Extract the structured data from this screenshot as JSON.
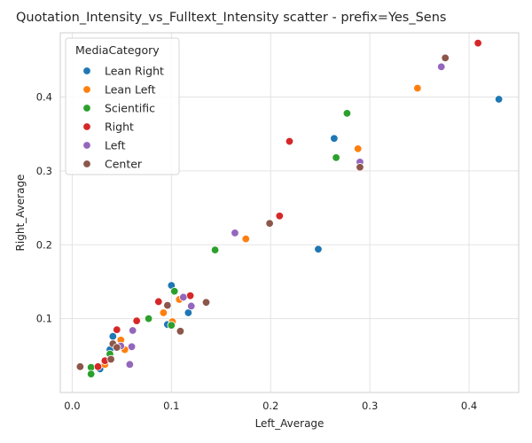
{
  "chart_data": {
    "type": "scatter",
    "title": "Quotation_Intensity_vs_Fulltext_Intensity scatter - prefix=Yes_Sens",
    "xlabel": "Left_Average",
    "ylabel": "Right_Average",
    "xlim": [
      -0.012,
      0.45
    ],
    "ylim": [
      0.0,
      0.487
    ],
    "xticks": [
      0.0,
      0.1,
      0.2,
      0.3,
      0.4
    ],
    "xtick_labels": [
      "0.0",
      "0.1",
      "0.2",
      "0.3",
      "0.4"
    ],
    "yticks": [
      0.1,
      0.2,
      0.3,
      0.4
    ],
    "ytick_labels": [
      "0.1",
      "0.2",
      "0.3",
      "0.4"
    ],
    "grid": true,
    "legend": {
      "title": "MediaCategory",
      "placement": "top-left"
    },
    "series": [
      {
        "name": "Lean Right",
        "color": "#1f77b4",
        "points": [
          {
            "x": 0.43,
            "y": 0.397
          },
          {
            "x": 0.264,
            "y": 0.344
          },
          {
            "x": 0.248,
            "y": 0.194
          },
          {
            "x": 0.1,
            "y": 0.145
          },
          {
            "x": 0.117,
            "y": 0.108
          },
          {
            "x": 0.096,
            "y": 0.092
          },
          {
            "x": 0.041,
            "y": 0.076
          },
          {
            "x": 0.038,
            "y": 0.058
          },
          {
            "x": 0.028,
            "y": 0.032
          }
        ]
      },
      {
        "name": "Lean Left",
        "color": "#ff7f0e",
        "points": [
          {
            "x": 0.348,
            "y": 0.412
          },
          {
            "x": 0.288,
            "y": 0.33
          },
          {
            "x": 0.175,
            "y": 0.208
          },
          {
            "x": 0.108,
            "y": 0.126
          },
          {
            "x": 0.092,
            "y": 0.108
          },
          {
            "x": 0.101,
            "y": 0.096
          },
          {
            "x": 0.049,
            "y": 0.071
          },
          {
            "x": 0.053,
            "y": 0.058
          },
          {
            "x": 0.033,
            "y": 0.038
          }
        ]
      },
      {
        "name": "Scientific",
        "color": "#2ca02c",
        "points": [
          {
            "x": 0.277,
            "y": 0.378
          },
          {
            "x": 0.266,
            "y": 0.318
          },
          {
            "x": 0.144,
            "y": 0.193
          },
          {
            "x": 0.103,
            "y": 0.137
          },
          {
            "x": 0.077,
            "y": 0.1
          },
          {
            "x": 0.1,
            "y": 0.091
          },
          {
            "x": 0.038,
            "y": 0.052
          },
          {
            "x": 0.019,
            "y": 0.034
          },
          {
            "x": 0.019,
            "y": 0.025
          }
        ]
      },
      {
        "name": "Right",
        "color": "#d62728",
        "points": [
          {
            "x": 0.409,
            "y": 0.473
          },
          {
            "x": 0.219,
            "y": 0.34
          },
          {
            "x": 0.209,
            "y": 0.239
          },
          {
            "x": 0.119,
            "y": 0.131
          },
          {
            "x": 0.087,
            "y": 0.123
          },
          {
            "x": 0.065,
            "y": 0.097
          },
          {
            "x": 0.045,
            "y": 0.085
          },
          {
            "x": 0.033,
            "y": 0.043
          },
          {
            "x": 0.026,
            "y": 0.035
          }
        ]
      },
      {
        "name": "Left",
        "color": "#9467bd",
        "points": [
          {
            "x": 0.372,
            "y": 0.441
          },
          {
            "x": 0.29,
            "y": 0.312
          },
          {
            "x": 0.164,
            "y": 0.216
          },
          {
            "x": 0.112,
            "y": 0.129
          },
          {
            "x": 0.12,
            "y": 0.117
          },
          {
            "x": 0.061,
            "y": 0.084
          },
          {
            "x": 0.06,
            "y": 0.062
          },
          {
            "x": 0.049,
            "y": 0.063
          },
          {
            "x": 0.058,
            "y": 0.038
          }
        ]
      },
      {
        "name": "Center",
        "color": "#8c564b",
        "points": [
          {
            "x": 0.376,
            "y": 0.453
          },
          {
            "x": 0.29,
            "y": 0.305
          },
          {
            "x": 0.199,
            "y": 0.229
          },
          {
            "x": 0.135,
            "y": 0.122
          },
          {
            "x": 0.096,
            "y": 0.118
          },
          {
            "x": 0.109,
            "y": 0.083
          },
          {
            "x": 0.041,
            "y": 0.066
          },
          {
            "x": 0.045,
            "y": 0.061
          },
          {
            "x": 0.039,
            "y": 0.045
          },
          {
            "x": 0.008,
            "y": 0.035
          }
        ]
      }
    ]
  }
}
